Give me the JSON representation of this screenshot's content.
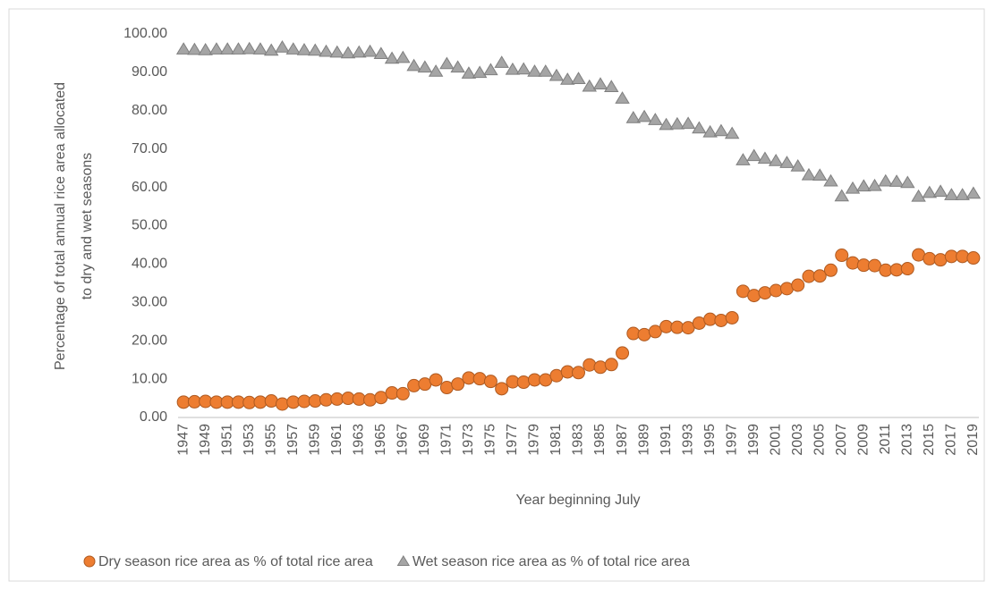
{
  "chart_data": {
    "type": "scatter-line-markers",
    "y_label": [
      "Percentage of total annual rice area allocated",
      "to dry and wet seasons"
    ],
    "x_label": "Year beginning July",
    "categories": [
      "1947",
      null,
      "1949",
      null,
      "1951",
      null,
      "1953",
      null,
      "1955",
      null,
      "1957",
      null,
      "1959",
      null,
      "1961",
      null,
      "1963",
      null,
      "1965",
      null,
      "1967",
      null,
      "1969",
      null,
      "1971",
      null,
      "1973",
      null,
      "1975",
      null,
      "1977",
      null,
      "1979",
      null,
      "1981",
      null,
      "1983",
      null,
      "1985",
      null,
      "1987",
      null,
      "1989",
      null,
      "1991",
      null,
      "1993",
      null,
      "1995",
      null,
      "1997",
      null,
      "1999",
      null,
      "2001",
      null,
      "2003",
      null,
      "2005",
      null,
      "2007",
      null,
      "2009",
      null,
      "2011",
      null,
      "2013",
      null,
      "2015",
      null,
      "2017",
      null,
      "2019"
    ],
    "series": [
      {
        "name": "Dry season rice area as % of total rice area",
        "color": "#ED7D31",
        "marker": "circle",
        "values": [
          4.0,
          4.1,
          4.2,
          4.0,
          4.0,
          4.0,
          3.9,
          4.0,
          4.3,
          3.5,
          4.0,
          4.2,
          4.3,
          4.6,
          4.8,
          5.0,
          4.8,
          4.6,
          5.2,
          6.4,
          6.2,
          8.3,
          8.7,
          9.8,
          7.8,
          8.7,
          10.3,
          10.1,
          9.4,
          7.5,
          9.3,
          9.2,
          9.8,
          9.8,
          10.9,
          11.9,
          11.7,
          13.7,
          13.1,
          13.8,
          16.8,
          21.9,
          21.6,
          22.4,
          23.7,
          23.5,
          23.4,
          24.6,
          25.6,
          25.3,
          26.0,
          32.9,
          31.8,
          32.5,
          33.1,
          33.6,
          34.5,
          36.8,
          36.9,
          38.4,
          42.3,
          40.3,
          39.7,
          39.6,
          38.4,
          38.5,
          38.8,
          42.4,
          41.4,
          41.1,
          42.0,
          42.0,
          41.6
        ]
      },
      {
        "name": "Wet season rice area as % of total rice area",
        "color": "#A5A5A5",
        "marker": "triangle",
        "values": [
          96.0,
          95.9,
          95.8,
          96.0,
          96.0,
          96.0,
          96.1,
          96.0,
          95.7,
          96.5,
          96.0,
          95.8,
          95.7,
          95.4,
          95.2,
          95.0,
          95.2,
          95.4,
          94.8,
          93.6,
          93.8,
          91.7,
          91.3,
          90.2,
          92.2,
          91.3,
          89.7,
          89.9,
          90.6,
          92.5,
          90.7,
          90.8,
          90.2,
          90.2,
          89.1,
          88.1,
          88.3,
          86.3,
          86.9,
          86.2,
          83.2,
          78.1,
          78.4,
          77.6,
          76.3,
          76.5,
          76.6,
          75.4,
          74.4,
          74.7,
          74.0,
          67.1,
          68.2,
          67.5,
          66.9,
          66.4,
          65.5,
          63.2,
          63.1,
          61.6,
          57.7,
          59.7,
          60.3,
          60.4,
          61.6,
          61.5,
          61.2,
          57.6,
          58.6,
          58.9,
          58.0,
          58.0,
          58.4
        ]
      }
    ],
    "ylim": [
      0,
      100
    ],
    "yticks": [
      {
        "value": 0,
        "label": "0.00"
      },
      {
        "value": 10,
        "label": "10.00"
      },
      {
        "value": 20,
        "label": "20.00"
      },
      {
        "value": 30,
        "label": "30.00"
      },
      {
        "value": 40,
        "label": "40.00"
      },
      {
        "value": 50,
        "label": "50.00"
      },
      {
        "value": 60,
        "label": "60.00"
      },
      {
        "value": 70,
        "label": "70.00"
      },
      {
        "value": 80,
        "label": "80.00"
      },
      {
        "value": 90,
        "label": "90.00"
      },
      {
        "value": 100,
        "label": "100.00"
      }
    ],
    "grid": false,
    "legend": "bottom"
  }
}
